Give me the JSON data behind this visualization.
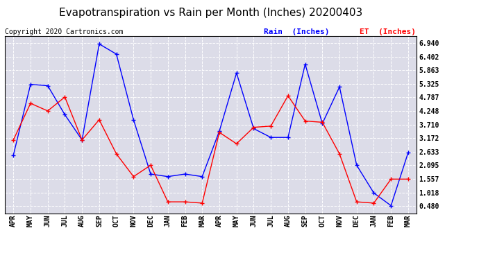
{
  "title": "Evapotranspiration vs Rain per Month (Inches) 20200403",
  "copyright": "Copyright 2020 Cartronics.com",
  "months": [
    "APR",
    "MAY",
    "JUN",
    "JUL",
    "AUG",
    "SEP",
    "OCT",
    "NOV",
    "DEC",
    "JAN",
    "FEB",
    "MAR",
    "APR",
    "MAY",
    "JUN",
    "JUL",
    "AUG",
    "SEP",
    "OCT",
    "NOV",
    "DEC",
    "JAN",
    "FEB",
    "MAR"
  ],
  "rain": [
    2.5,
    5.3,
    5.25,
    4.1,
    3.1,
    6.9,
    6.5,
    3.9,
    1.75,
    1.65,
    1.75,
    1.65,
    3.45,
    5.75,
    3.55,
    3.2,
    3.2,
    6.1,
    3.75,
    5.2,
    2.1,
    1.0,
    0.5,
    2.6
  ],
  "et": [
    3.1,
    4.55,
    4.25,
    4.8,
    3.1,
    3.9,
    2.55,
    1.65,
    2.1,
    0.65,
    0.65,
    0.6,
    3.4,
    2.95,
    3.6,
    3.65,
    4.85,
    3.85,
    3.8,
    2.55,
    0.65,
    0.6,
    1.55,
    1.55
  ],
  "rain_color": "#0000ff",
  "et_color": "#ff0000",
  "yticks": [
    0.48,
    1.018,
    1.557,
    2.095,
    2.633,
    3.172,
    3.71,
    4.248,
    4.787,
    5.325,
    5.863,
    6.402,
    6.94
  ],
  "background_color": "#dcdce8",
  "plot_bg_color": "#dcdce8",
  "title_fontsize": 11,
  "copyright_fontsize": 7,
  "tick_fontsize": 7,
  "legend_rain": "Rain  (Inches)",
  "legend_et": "ET  (Inches)",
  "ylim_min": 0.2,
  "ylim_max": 7.2
}
